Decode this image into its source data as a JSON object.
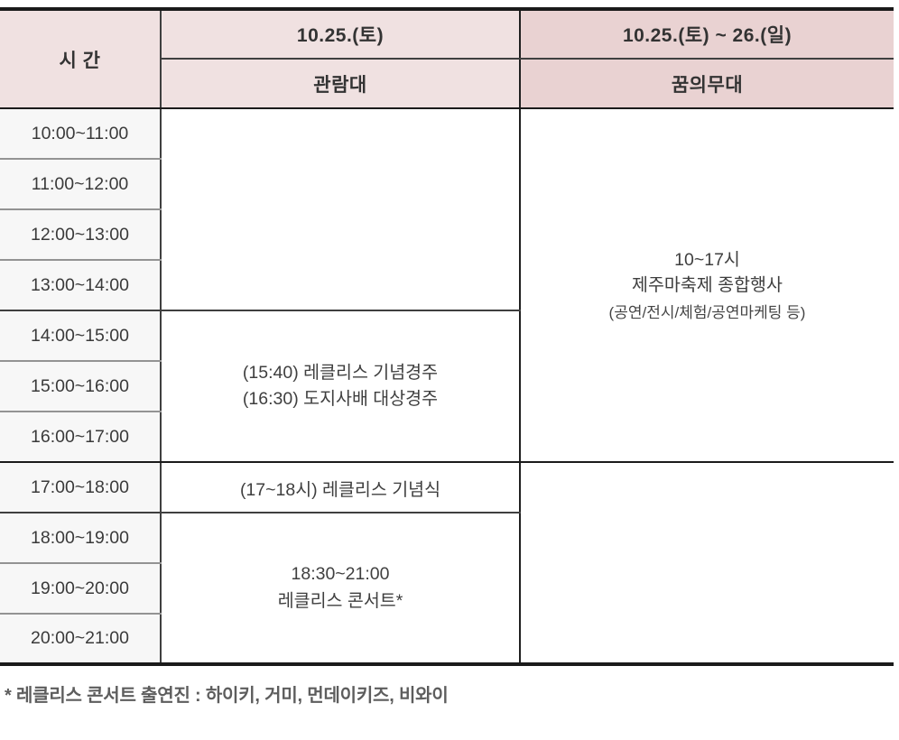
{
  "table": {
    "header": {
      "time_label": "시 간",
      "col1_date": "10.25.(토)",
      "col1_venue": "관람대",
      "col2_date": "10.25.(토) ~ 26.(일)",
      "col2_venue": "꿈의무대"
    },
    "time_slots": [
      "10:00~11:00",
      "11:00~12:00",
      "12:00~13:00",
      "13:00~14:00",
      "14:00~15:00",
      "15:00~16:00",
      "16:00~17:00",
      "17:00~18:00",
      "18:00~19:00",
      "19:00~20:00",
      "20:00~21:00"
    ],
    "cells": {
      "viewing_empty": "",
      "viewing_races": "(15:40) 레클리스 기념경주\n(16:30) 도지사배 대상경주",
      "viewing_ceremony": "(17~18시) 레클리스 기념식",
      "viewing_concert": "18:30~21:00\n레클리스 콘서트*",
      "dream_event": {
        "line1": "10~17시",
        "line2": "제주마축제 종합행사",
        "line3": "(공연/전시/체험/공연마케팅 등)"
      },
      "dream_empty": ""
    },
    "colors": {
      "header_bg_left": "#f0e1e1",
      "header_bg_right": "#e9d2d2",
      "time_column_bg": "#f7f7f7",
      "line_gray": "#939393",
      "line_dark": "#3f3f3f",
      "line_black": "#1b1b1b"
    }
  },
  "footnote": "* 레클리스 콘서트 출연진 : 하이키, 거미, 먼데이키즈, 비와이"
}
